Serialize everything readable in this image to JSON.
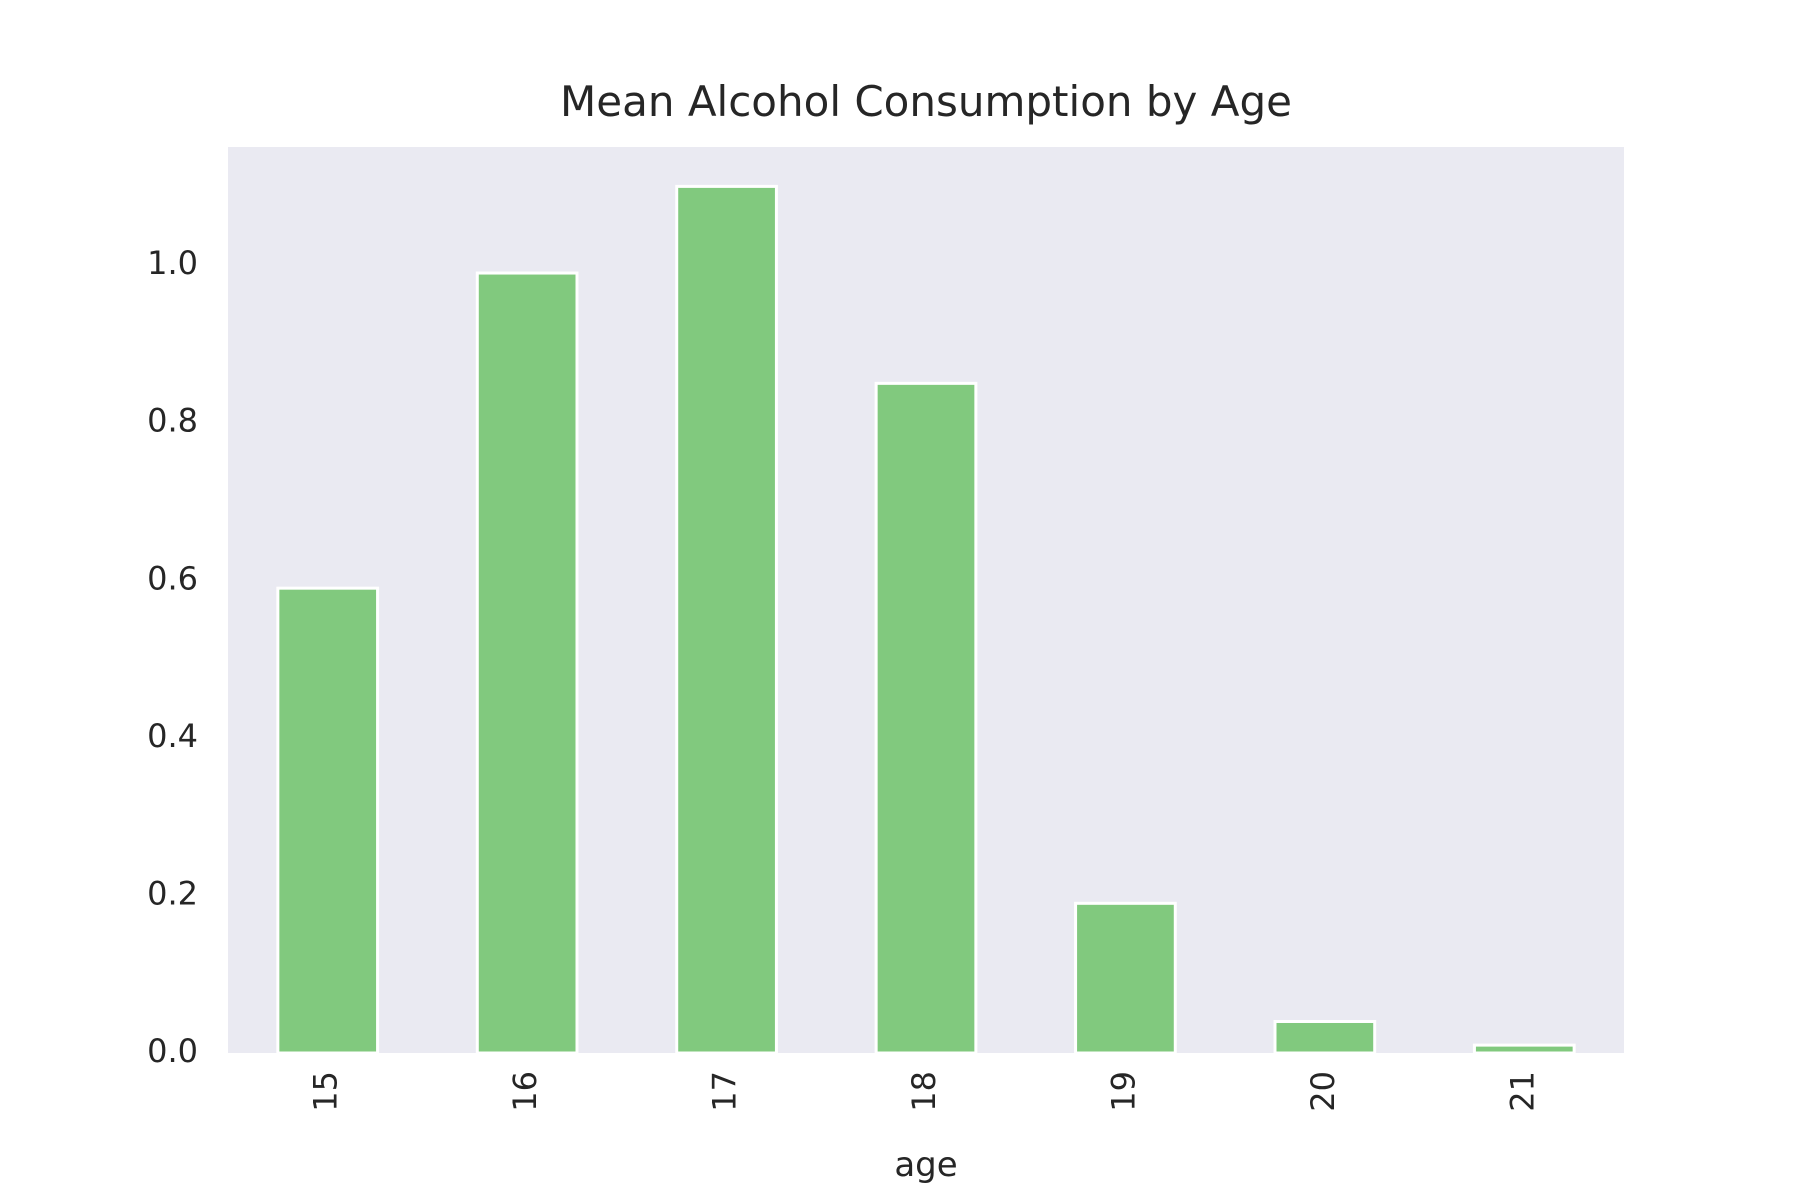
{
  "chart_data": {
    "type": "bar",
    "title": "Mean Alcohol Consumption by Age",
    "xlabel": "age",
    "ylabel": "",
    "categories": [
      "15",
      "16",
      "17",
      "18",
      "19",
      "20",
      "21"
    ],
    "values": [
      0.59,
      0.99,
      1.1,
      0.85,
      0.19,
      0.04,
      0.01
    ],
    "ylim": [
      0,
      1.15
    ],
    "yticks": [
      "0.0",
      "0.2",
      "0.4",
      "0.6",
      "0.8",
      "1.0"
    ],
    "grid": false,
    "legend": "none",
    "bar_color": "#81c97e",
    "bar_edge_color": "#ffffff",
    "plot_background": "#eaeaf2"
  }
}
